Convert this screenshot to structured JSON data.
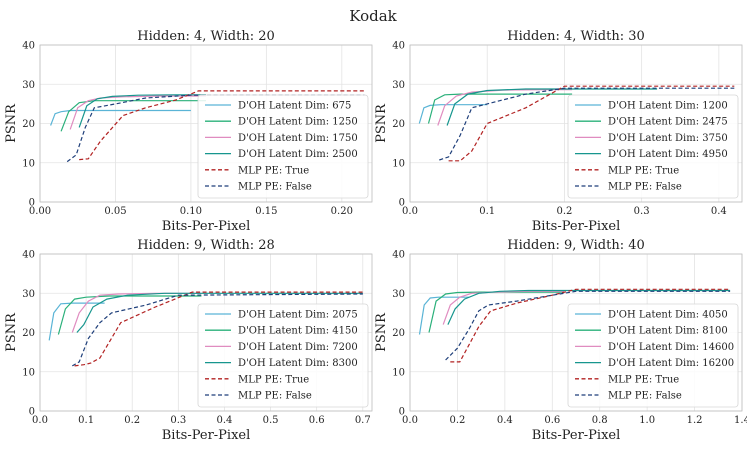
{
  "figure": {
    "title": "Kodak"
  },
  "chart_data": [
    {
      "type": "line",
      "title": "Hidden: 4, Width: 20",
      "xlabel": "Bits-Per-Pixel",
      "ylabel": "PSNR",
      "xlim": [
        0,
        0.22
      ],
      "ylim": [
        0,
        40
      ],
      "xticks": [
        0.0,
        0.05,
        0.1,
        0.15,
        0.2
      ],
      "xtick_labels": [
        "0.00",
        "0.05",
        "0.10",
        "0.15",
        "0.20"
      ],
      "yticks": [
        0,
        10,
        20,
        30,
        40
      ],
      "ytick_labels": [
        "0",
        "10",
        "20",
        "30",
        "40"
      ],
      "grid": true,
      "legend_position": "right",
      "series": [
        {
          "name": "D'OH Latent Dim: 675",
          "color": "#5ab4d6",
          "dash": "solid",
          "x": [
            0.007,
            0.01,
            0.014,
            0.02,
            0.03,
            0.04,
            0.055,
            0.1
          ],
          "y": [
            19.5,
            22.5,
            23.0,
            23.3,
            23.3,
            23.3,
            23.3,
            23.3
          ]
        },
        {
          "name": "D'OH Latent Dim: 1250",
          "color": "#2ab07a",
          "dash": "solid",
          "x": [
            0.014,
            0.019,
            0.026,
            0.036,
            0.052,
            0.07,
            0.11
          ],
          "y": [
            18.0,
            23.0,
            25.3,
            25.8,
            25.8,
            25.8,
            25.8
          ]
        },
        {
          "name": "D'OH Latent Dim: 1750",
          "color": "#e08cc0",
          "dash": "solid",
          "x": [
            0.02,
            0.025,
            0.032,
            0.04,
            0.055,
            0.08,
            0.11
          ],
          "y": [
            18.5,
            24.0,
            25.8,
            26.5,
            26.8,
            27.0,
            27.0
          ]
        },
        {
          "name": "D'OH Latent Dim: 2500",
          "color": "#17968e",
          "dash": "solid",
          "x": [
            0.026,
            0.031,
            0.038,
            0.048,
            0.065,
            0.09,
            0.11
          ],
          "y": [
            19.0,
            24.5,
            26.3,
            26.9,
            27.2,
            27.3,
            27.3
          ]
        },
        {
          "name": "MLP PE: True",
          "color": "#b22222",
          "dash": "dashed",
          "x": [
            0.026,
            0.032,
            0.04,
            0.055,
            0.07,
            0.09,
            0.105,
            0.215
          ],
          "y": [
            10.8,
            11.0,
            15.5,
            22.0,
            24.0,
            26.0,
            28.3,
            28.3
          ]
        },
        {
          "name": "MLP PE: False",
          "color": "#1f3f7a",
          "dash": "dashed",
          "x": [
            0.018,
            0.024,
            0.03,
            0.036,
            0.05,
            0.07,
            0.1,
            0.215
          ],
          "y": [
            10.3,
            12.0,
            19.0,
            24.0,
            25.0,
            26.5,
            27.2,
            27.2
          ]
        }
      ]
    },
    {
      "type": "line",
      "title": "Hidden: 4, Width: 30",
      "xlabel": "Bits-Per-Pixel",
      "ylabel": "PSNR",
      "xlim": [
        0,
        0.43
      ],
      "ylim": [
        0,
        40
      ],
      "xticks": [
        0.0,
        0.1,
        0.2,
        0.3,
        0.4
      ],
      "xtick_labels": [
        "0.0",
        "0.1",
        "0.2",
        "0.3",
        "0.4"
      ],
      "yticks": [
        0,
        10,
        20,
        30,
        40
      ],
      "ytick_labels": [
        "0",
        "10",
        "20",
        "30",
        "40"
      ],
      "grid": true,
      "legend_position": "right",
      "series": [
        {
          "name": "D'OH Latent Dim: 1200",
          "color": "#5ab4d6",
          "dash": "solid",
          "x": [
            0.012,
            0.018,
            0.026,
            0.04,
            0.06,
            0.1
          ],
          "y": [
            20.0,
            24.0,
            24.6,
            24.8,
            24.8,
            24.8
          ]
        },
        {
          "name": "D'OH Latent Dim: 2475",
          "color": "#2ab07a",
          "dash": "solid",
          "x": [
            0.024,
            0.032,
            0.045,
            0.065,
            0.1,
            0.15,
            0.21
          ],
          "y": [
            20.0,
            26.0,
            27.3,
            27.5,
            27.5,
            27.5,
            27.5
          ]
        },
        {
          "name": "D'OH Latent Dim: 3750",
          "color": "#e08cc0",
          "dash": "solid",
          "x": [
            0.036,
            0.045,
            0.06,
            0.08,
            0.12,
            0.18,
            0.21
          ],
          "y": [
            19.5,
            24.5,
            27.0,
            28.0,
            28.5,
            28.6,
            28.6
          ]
        },
        {
          "name": "D'OH Latent Dim: 4950",
          "color": "#17968e",
          "dash": "solid",
          "x": [
            0.048,
            0.058,
            0.075,
            0.1,
            0.15,
            0.22,
            0.32
          ],
          "y": [
            19.5,
            25.0,
            27.5,
            28.4,
            28.8,
            28.8,
            28.8
          ]
        },
        {
          "name": "MLP PE: True",
          "color": "#b22222",
          "dash": "dashed",
          "x": [
            0.05,
            0.065,
            0.08,
            0.1,
            0.15,
            0.2,
            0.42
          ],
          "y": [
            10.5,
            10.5,
            13.0,
            20.0,
            24.0,
            29.5,
            29.5
          ]
        },
        {
          "name": "MLP PE: False",
          "color": "#1f3f7a",
          "dash": "dashed",
          "x": [
            0.038,
            0.05,
            0.065,
            0.08,
            0.1,
            0.15,
            0.2,
            0.42
          ],
          "y": [
            10.7,
            11.5,
            17.0,
            24.0,
            25.0,
            27.5,
            29.0,
            29.0
          ]
        }
      ]
    },
    {
      "type": "line",
      "title": "Hidden: 9, Width: 28",
      "xlabel": "Bits-Per-Pixel",
      "ylabel": "PSNR",
      "xlim": [
        0,
        0.72
      ],
      "ylim": [
        0,
        40
      ],
      "xticks": [
        0.0,
        0.1,
        0.2,
        0.3,
        0.4,
        0.5,
        0.6,
        0.7
      ],
      "xtick_labels": [
        "0.0",
        "0.1",
        "0.2",
        "0.3",
        "0.4",
        "0.5",
        "0.6",
        "0.7"
      ],
      "yticks": [
        0,
        10,
        20,
        30,
        40
      ],
      "ytick_labels": [
        "0",
        "10",
        "20",
        "30",
        "40"
      ],
      "grid": true,
      "legend_position": "right",
      "series": [
        {
          "name": "D'OH Latent Dim: 2075",
          "color": "#5ab4d6",
          "dash": "solid",
          "x": [
            0.02,
            0.03,
            0.045,
            0.07,
            0.1,
            0.14
          ],
          "y": [
            18.0,
            25.0,
            27.3,
            27.5,
            27.5,
            27.5
          ]
        },
        {
          "name": "D'OH Latent Dim: 4150",
          "color": "#2ab07a",
          "dash": "solid",
          "x": [
            0.04,
            0.055,
            0.075,
            0.1,
            0.15,
            0.25,
            0.35
          ],
          "y": [
            19.5,
            26.0,
            28.5,
            29.0,
            29.3,
            29.3,
            29.3
          ]
        },
        {
          "name": "D'OH Latent Dim: 7200",
          "color": "#e08cc0",
          "dash": "solid",
          "x": [
            0.07,
            0.085,
            0.105,
            0.13,
            0.17,
            0.25,
            0.35
          ],
          "y": [
            20.0,
            25.0,
            28.0,
            29.5,
            29.8,
            30.0,
            30.0
          ]
        },
        {
          "name": "D'OH Latent Dim: 8300",
          "color": "#17968e",
          "dash": "solid",
          "x": [
            0.08,
            0.095,
            0.115,
            0.145,
            0.19,
            0.27,
            0.35,
            0.7
          ],
          "y": [
            20.0,
            22.0,
            26.5,
            28.5,
            29.5,
            30.0,
            30.0,
            30.0
          ]
        },
        {
          "name": "MLP PE: True",
          "color": "#b22222",
          "dash": "dashed",
          "x": [
            0.075,
            0.095,
            0.11,
            0.13,
            0.175,
            0.25,
            0.33,
            0.7
          ],
          "y": [
            11.5,
            11.8,
            12.2,
            13.5,
            22.5,
            26.5,
            30.3,
            30.3
          ]
        },
        {
          "name": "MLP PE: False",
          "color": "#1f3f7a",
          "dash": "dashed",
          "x": [
            0.07,
            0.085,
            0.105,
            0.13,
            0.155,
            0.23,
            0.3,
            0.7
          ],
          "y": [
            11.5,
            12.5,
            18.5,
            22.5,
            25.0,
            27.0,
            29.5,
            29.8
          ]
        }
      ]
    },
    {
      "type": "line",
      "title": "Hidden: 9, Width: 40",
      "xlabel": "Bits-Per-Pixel",
      "ylabel": "PSNR",
      "xlim": [
        0,
        1.4
      ],
      "ylim": [
        0,
        40
      ],
      "xticks": [
        0.0,
        0.2,
        0.4,
        0.6,
        0.8,
        1.0,
        1.2,
        1.4
      ],
      "xtick_labels": [
        "0.0",
        "0.2",
        "0.4",
        "0.6",
        "0.8",
        "1.0",
        "1.2",
        "1.4"
      ],
      "yticks": [
        0,
        10,
        20,
        30,
        40
      ],
      "ytick_labels": [
        "0",
        "10",
        "20",
        "30",
        "40"
      ],
      "grid": true,
      "legend_position": "right",
      "series": [
        {
          "name": "D'OH Latent Dim: 4050",
          "color": "#5ab4d6",
          "dash": "solid",
          "x": [
            0.04,
            0.06,
            0.085,
            0.12,
            0.17,
            0.25
          ],
          "y": [
            19.5,
            27.0,
            28.8,
            29.0,
            29.0,
            29.0
          ]
        },
        {
          "name": "D'OH Latent Dim: 8100",
          "color": "#2ab07a",
          "dash": "solid",
          "x": [
            0.08,
            0.11,
            0.15,
            0.2,
            0.3,
            0.45,
            0.65
          ],
          "y": [
            20.0,
            28.0,
            29.8,
            30.2,
            30.3,
            30.3,
            30.3
          ]
        },
        {
          "name": "D'OH Latent Dim: 14600",
          "color": "#e08cc0",
          "dash": "solid",
          "x": [
            0.14,
            0.17,
            0.21,
            0.26,
            0.35,
            0.5,
            0.65
          ],
          "y": [
            22.0,
            27.0,
            29.0,
            30.0,
            30.3,
            30.5,
            30.5
          ]
        },
        {
          "name": "D'OH Latent Dim: 16200",
          "color": "#17968e",
          "dash": "solid",
          "x": [
            0.16,
            0.19,
            0.23,
            0.29,
            0.38,
            0.5,
            0.65,
            1.35
          ],
          "y": [
            22.0,
            26.0,
            28.5,
            30.0,
            30.5,
            30.7,
            30.7,
            30.7
          ]
        },
        {
          "name": "MLP PE: True",
          "color": "#b22222",
          "dash": "dashed",
          "x": [
            0.17,
            0.21,
            0.25,
            0.29,
            0.34,
            0.45,
            0.6,
            0.7,
            1.35
          ],
          "y": [
            12.5,
            12.5,
            17.0,
            21.5,
            25.5,
            27.5,
            29.5,
            31.0,
            31.0
          ]
        },
        {
          "name": "MLP PE: False",
          "color": "#1f3f7a",
          "dash": "dashed",
          "x": [
            0.15,
            0.2,
            0.25,
            0.29,
            0.33,
            0.45,
            0.6,
            0.7,
            1.35
          ],
          "y": [
            13.0,
            16.0,
            21.0,
            25.5,
            27.0,
            28.0,
            29.5,
            30.5,
            30.5
          ]
        }
      ]
    }
  ]
}
